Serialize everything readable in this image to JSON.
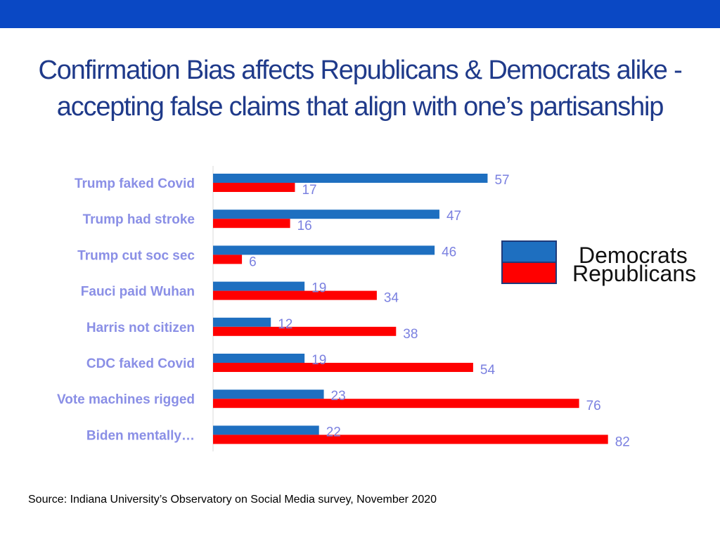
{
  "slide": {
    "title_line1": "Confirmation Bias affects Republicans & Democrats alike -",
    "title_line2": "accepting false claims that align with one’s partisanship",
    "source": "Source: Indiana University’s Observatory on Social Media survey, November 2020"
  },
  "colors": {
    "top_band": "#0a48c4",
    "democrats": "#1e6fc0",
    "republicans": "#ff0000",
    "title": "#1f3a8a",
    "labels": "#8a8fe6"
  },
  "chart_data": {
    "type": "bar",
    "orientation": "horizontal",
    "categories": [
      "Trump faked Covid",
      "Trump had stroke",
      "Trump cut soc sec",
      "Fauci paid Wuhan",
      "Harris not citizen",
      "CDC faked Covid",
      "Vote machines rigged",
      "Biden mentally…"
    ],
    "series": [
      {
        "name": "Democrats",
        "values": [
          57,
          47,
          46,
          19,
          12,
          19,
          23,
          22
        ]
      },
      {
        "name": "Republicans",
        "values": [
          17,
          16,
          6,
          34,
          38,
          54,
          76,
          82
        ]
      }
    ],
    "xlim": [
      0,
      100
    ],
    "legend": [
      "Democrats",
      "Republicans"
    ],
    "legend_position": "right",
    "grid": false
  }
}
